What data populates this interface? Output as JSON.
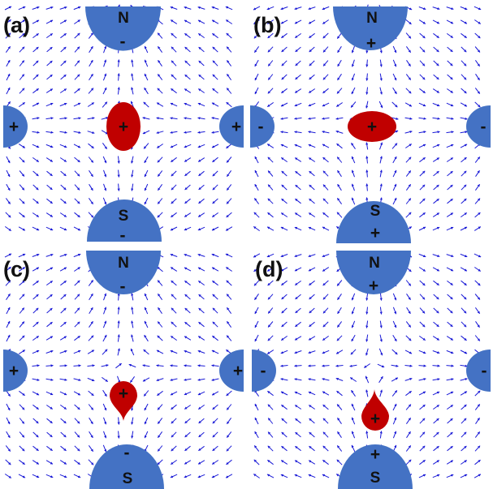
{
  "colors": {
    "field_arrow": "#1a1ad6",
    "electrode": "#4472c4",
    "droplet": "#c00000",
    "divider": "#d0d0d0"
  },
  "panels": [
    {
      "label": "(a)",
      "top_electrode": {
        "name": "N",
        "sign": "-"
      },
      "bottom_electrode": {
        "name": "S",
        "sign": "-"
      },
      "left_electrode": {
        "sign": "+"
      },
      "right_electrode": {
        "sign": "+"
      },
      "droplet": {
        "sign": "+",
        "shape": "vertical-ellipse"
      }
    },
    {
      "label": "(b)",
      "top_electrode": {
        "name": "N",
        "sign": "+"
      },
      "bottom_electrode": {
        "name": "S",
        "sign": "+"
      },
      "left_electrode": {
        "sign": "-"
      },
      "right_electrode": {
        "sign": "-"
      },
      "droplet": {
        "sign": "+",
        "shape": "horizontal-ellipse"
      }
    },
    {
      "label": "(c)",
      "top_electrode": {
        "name": "N",
        "sign": "-"
      },
      "bottom_electrode": {
        "name": "S",
        "sign": "-"
      },
      "left_electrode": {
        "sign": "+"
      },
      "right_electrode": {
        "sign": "+"
      },
      "droplet": {
        "sign": "+",
        "shape": "teardrop-down"
      }
    },
    {
      "label": "(d)",
      "top_electrode": {
        "name": "N",
        "sign": "+"
      },
      "bottom_electrode": {
        "name": "S",
        "sign": "+"
      },
      "left_electrode": {
        "sign": "-"
      },
      "right_electrode": {
        "sign": "-"
      },
      "droplet": {
        "sign": "+",
        "shape": "teardrop-up"
      }
    }
  ]
}
